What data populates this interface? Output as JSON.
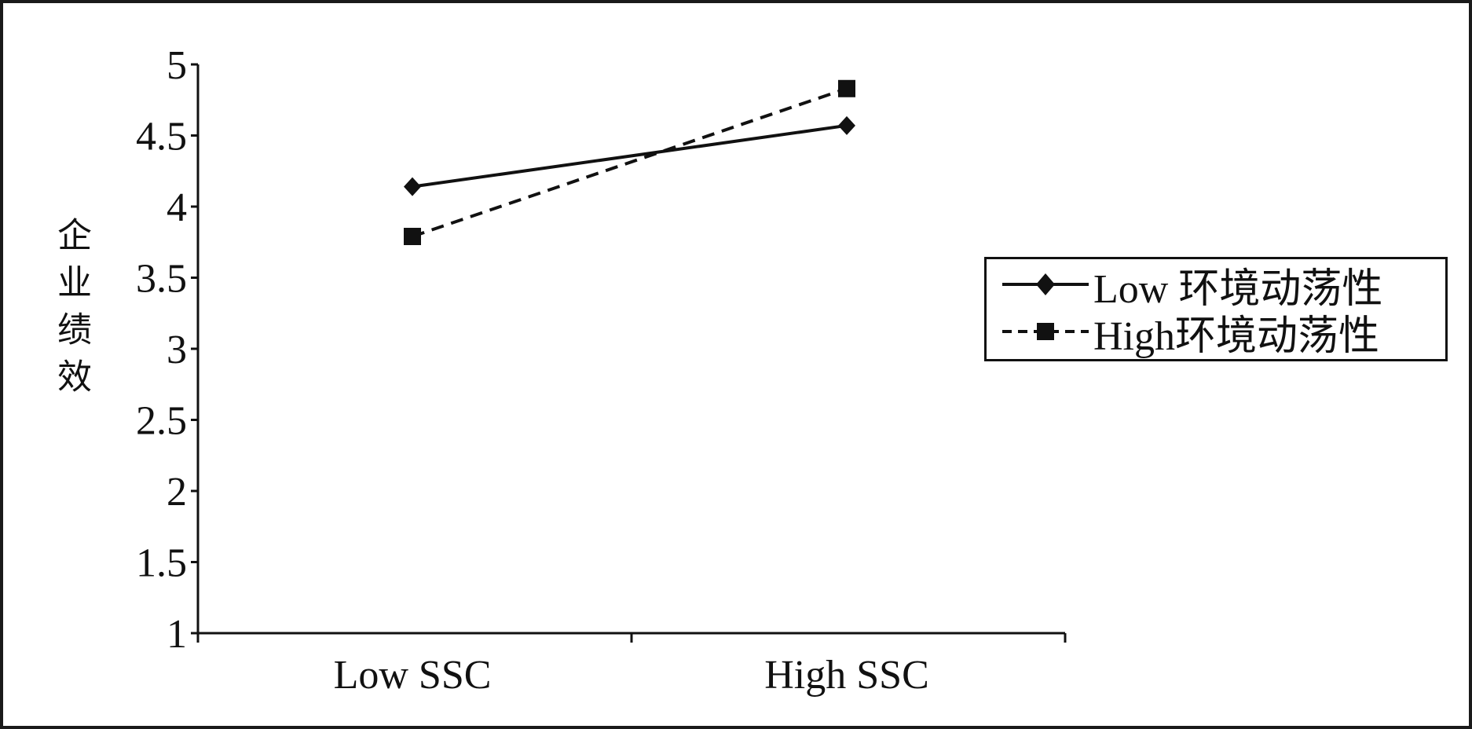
{
  "chart_data": {
    "type": "line",
    "title": "",
    "xlabel": "",
    "ylabel": "企业绩效",
    "categories": [
      "Low SSC",
      "High SSC"
    ],
    "ylim": [
      1,
      5
    ],
    "yticks": [
      "1",
      "1.5",
      "2",
      "2.5",
      "3",
      "3.5",
      "4",
      "4.5",
      "5"
    ],
    "grid": false,
    "legend_position": "right",
    "series": [
      {
        "name": "Low 环境动荡性",
        "values": [
          4.14,
          4.57
        ],
        "marker": "diamond",
        "line": "solid",
        "color": "#111111"
      },
      {
        "name": "High环境动荡性",
        "values": [
          3.79,
          4.83
        ],
        "marker": "square",
        "line": "dashed",
        "color": "#111111"
      }
    ]
  }
}
